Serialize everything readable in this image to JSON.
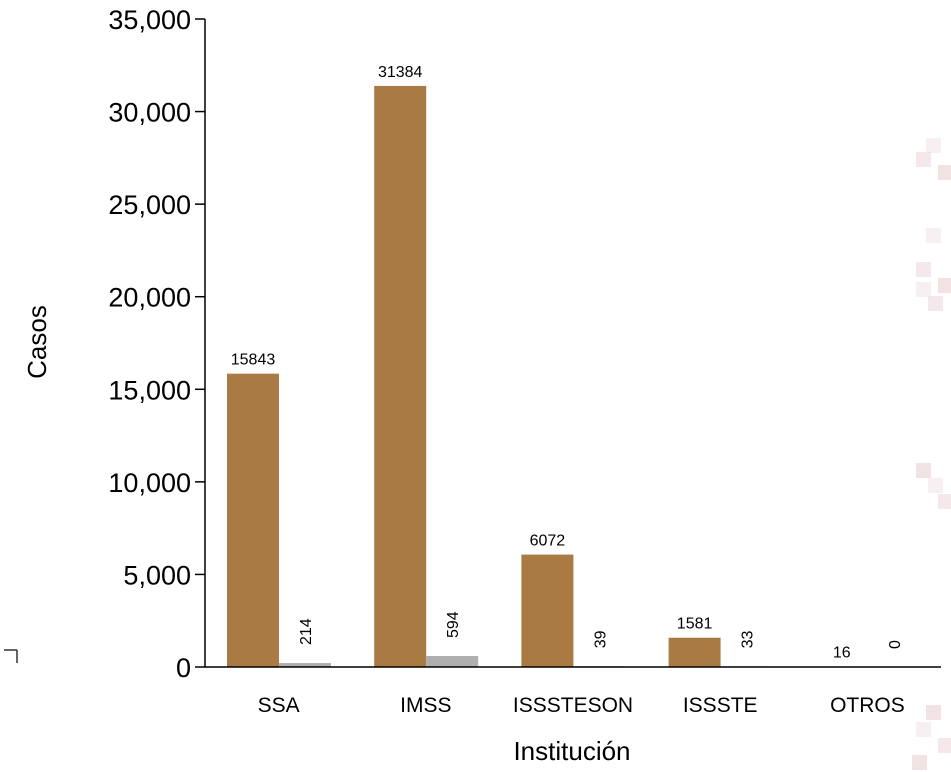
{
  "chart_data": {
    "type": "bar",
    "title": "",
    "xlabel": "Institución",
    "ylabel": "Casos",
    "ylim": [
      0,
      35000
    ],
    "y_ticks": [
      "0",
      "5,000",
      "10,000",
      "15,000",
      "20,000",
      "25,000",
      "30,000",
      "35,000"
    ],
    "y_tick_values": [
      0,
      5000,
      10000,
      15000,
      20000,
      25000,
      30000,
      35000
    ],
    "categories": [
      "SSA",
      "IMSS",
      "ISSSTESON",
      "ISSSTE",
      "OTROS"
    ],
    "series": [
      {
        "values": [
          15843,
          31384,
          6072,
          1581,
          16
        ],
        "color": "#A97A43",
        "labels": [
          "15843",
          "31384",
          "6072",
          "1581",
          "16"
        ]
      },
      {
        "values": [
          214,
          594,
          39,
          33,
          0
        ],
        "color": "#AFAFAF",
        "labels": [
          "214",
          "594",
          "39",
          "33",
          "0"
        ]
      }
    ],
    "grid": false,
    "legend": "none",
    "background_decoration_color": "#E9D2D6"
  }
}
